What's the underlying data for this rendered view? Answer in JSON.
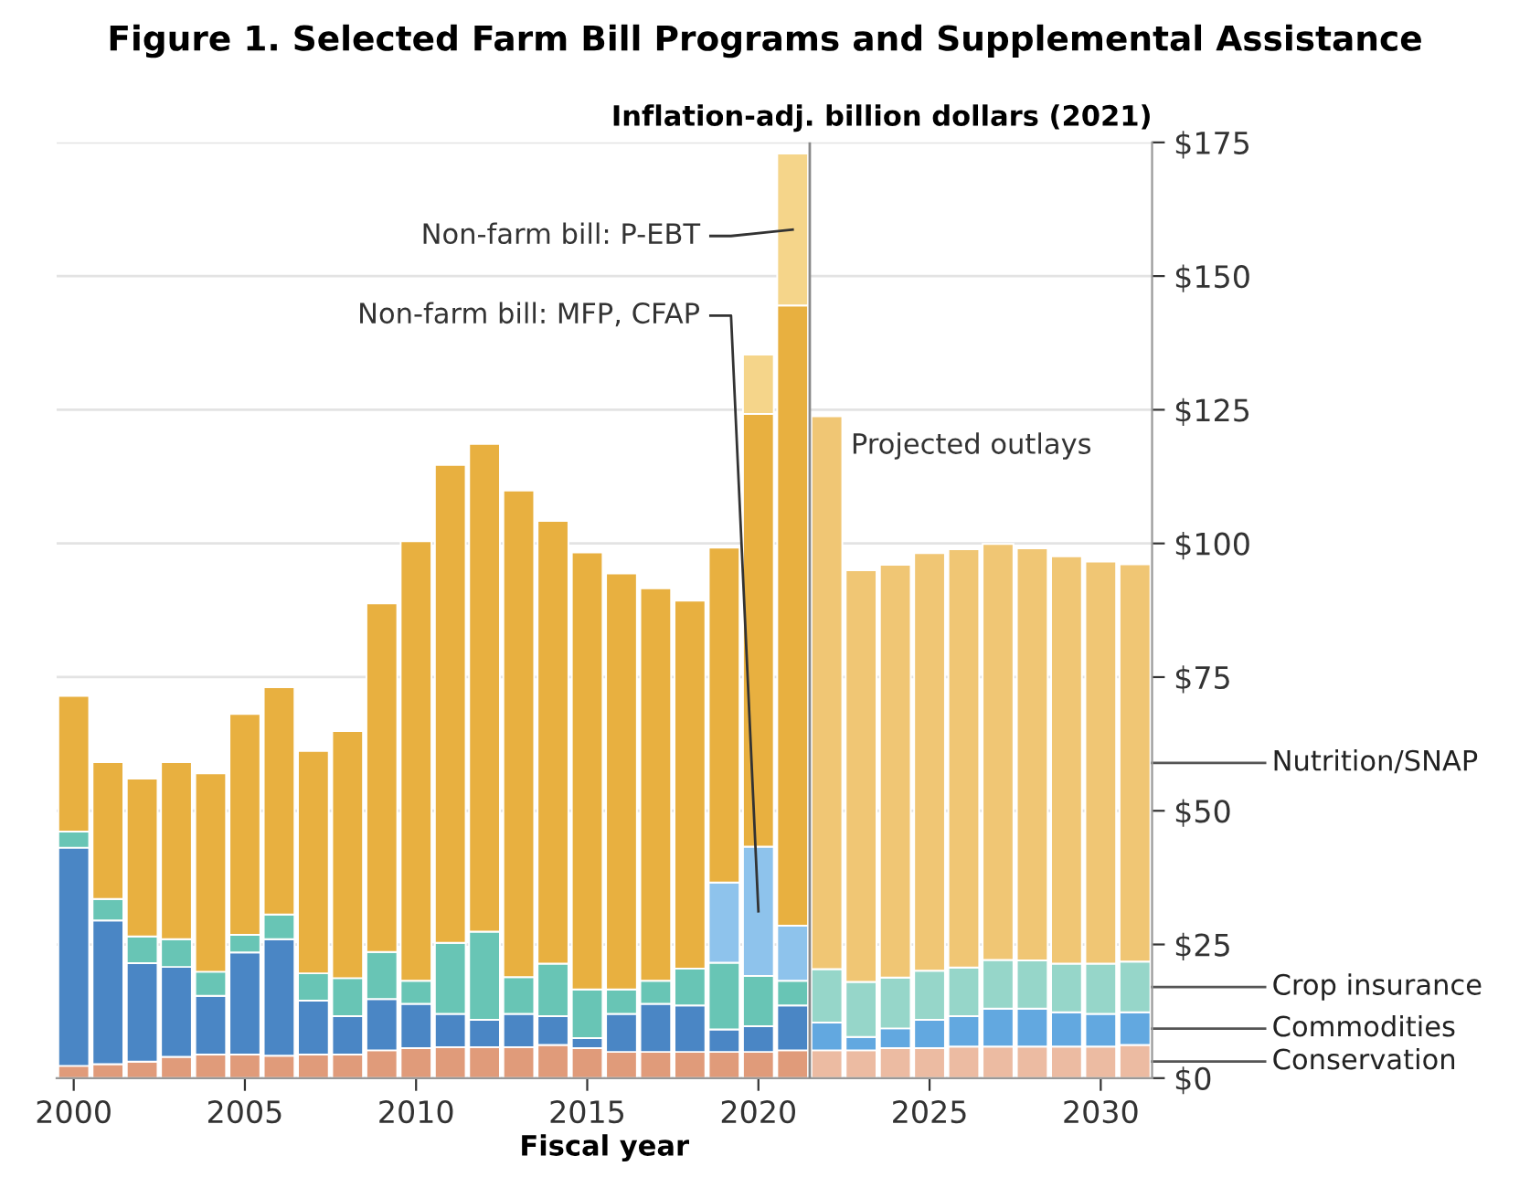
{
  "chart_data": {
    "type": "bar",
    "stacked": true,
    "title": "Figure 1. Selected Farm Bill Programs and Supplemental Assistance",
    "ylabel": "Inflation-adj. billion dollars (2021)",
    "xlabel": "Fiscal year",
    "x": [
      2000,
      2001,
      2002,
      2003,
      2004,
      2005,
      2006,
      2007,
      2008,
      2009,
      2010,
      2011,
      2012,
      2013,
      2014,
      2015,
      2016,
      2017,
      2018,
      2019,
      2020,
      2021,
      2022,
      2023,
      2024,
      2025,
      2026,
      2027,
      2028,
      2029,
      2030,
      2031
    ],
    "xlim": [
      1999.5,
      2031.5
    ],
    "xticks": [
      2000,
      2005,
      2010,
      2015,
      2020,
      2025,
      2030
    ],
    "ylim": [
      0,
      175
    ],
    "yticks": [
      {
        "value": 0,
        "label": "$0"
      },
      {
        "value": 25,
        "label": "$25"
      },
      {
        "value": 50,
        "label": "$50"
      },
      {
        "value": 75,
        "label": "$75"
      },
      {
        "value": 100,
        "label": "$100"
      },
      {
        "value": 125,
        "label": "$125"
      },
      {
        "value": 150,
        "label": "$150"
      },
      {
        "value": 175,
        "label": "$175"
      }
    ],
    "grid": "y",
    "legend": false,
    "series": [
      {
        "name": "Conservation",
        "values": [
          2.3,
          2.6,
          3.1,
          4.0,
          4.4,
          4.4,
          4.2,
          4.4,
          4.4,
          5.2,
          5.6,
          5.8,
          5.8,
          5.8,
          6.2,
          5.6,
          4.9,
          4.9,
          4.9,
          4.9,
          4.9,
          5.2,
          5.2,
          5.2,
          5.6,
          5.6,
          5.9,
          5.9,
          5.9,
          5.9,
          5.9,
          6.2
        ],
        "colors": [
          "#e09b7a",
          "#e09b7a",
          "#e09b7a",
          "#e09b7a",
          "#e09b7a",
          "#e09b7a",
          "#e09b7a",
          "#e09b7a",
          "#e09b7a",
          "#e09b7a",
          "#e09b7a",
          "#e09b7a",
          "#e09b7a",
          "#e09b7a",
          "#e09b7a",
          "#e09b7a",
          "#e09b7a",
          "#e09b7a",
          "#e09b7a",
          "#e09b7a",
          "#e09b7a",
          "#e09b7a",
          "#ecbba2",
          "#ecbba2",
          "#ecbba2",
          "#ecbba2",
          "#ecbba2",
          "#ecbba2",
          "#ecbba2",
          "#ecbba2",
          "#ecbba2",
          "#ecbba2"
        ]
      },
      {
        "name": "Commodities",
        "values": [
          40.8,
          26.9,
          18.4,
          16.8,
          11.0,
          19.1,
          21.8,
          10.1,
          7.2,
          9.6,
          8.3,
          6.2,
          5.1,
          6.2,
          5.4,
          1.9,
          7.1,
          9.0,
          8.7,
          4.2,
          4.8,
          8.4,
          5.2,
          2.5,
          3.7,
          5.3,
          5.7,
          7.1,
          7.1,
          6.4,
          6.1,
          6.1
        ],
        "colors": [
          "#4a86c5",
          "#4a86c5",
          "#4a86c5",
          "#4a86c5",
          "#4a86c5",
          "#4a86c5",
          "#4a86c5",
          "#4a86c5",
          "#4a86c5",
          "#4a86c5",
          "#4a86c5",
          "#4a86c5",
          "#4a86c5",
          "#4a86c5",
          "#4a86c5",
          "#4a86c5",
          "#4a86c5",
          "#4a86c5",
          "#4a86c5",
          "#4a86c5",
          "#4a86c5",
          "#4a86c5",
          "#62a8e0",
          "#62a8e0",
          "#62a8e0",
          "#62a8e0",
          "#62a8e0",
          "#62a8e0",
          "#62a8e0",
          "#62a8e0",
          "#62a8e0",
          "#62a8e0"
        ]
      },
      {
        "name": "Crop insurance",
        "values": [
          3.0,
          4.0,
          5.0,
          5.2,
          4.5,
          3.3,
          4.6,
          5.1,
          7.1,
          8.8,
          4.3,
          13.3,
          16.5,
          6.9,
          9.8,
          9.1,
          4.6,
          4.3,
          6.9,
          12.5,
          9.4,
          4.6,
          10.0,
          10.3,
          9.5,
          9.2,
          9.1,
          9.1,
          9.0,
          9.1,
          9.4,
          9.5
        ],
        "colors": [
          "#68c5b5",
          "#68c5b5",
          "#68c5b5",
          "#68c5b5",
          "#68c5b5",
          "#68c5b5",
          "#68c5b5",
          "#68c5b5",
          "#68c5b5",
          "#68c5b5",
          "#68c5b5",
          "#68c5b5",
          "#68c5b5",
          "#68c5b5",
          "#68c5b5",
          "#68c5b5",
          "#68c5b5",
          "#68c5b5",
          "#68c5b5",
          "#68c5b5",
          "#68c5b5",
          "#68c5b5",
          "#96d6c9",
          "#96d6c9",
          "#96d6c9",
          "#96d6c9",
          "#96d6c9",
          "#96d6c9",
          "#96d6c9",
          "#96d6c9",
          "#96d6c9",
          "#96d6c9"
        ]
      },
      {
        "name": "Non-farm bill: MFP, CFAP",
        "values": [
          null,
          null,
          null,
          null,
          null,
          null,
          null,
          null,
          null,
          null,
          null,
          null,
          null,
          null,
          null,
          null,
          null,
          null,
          null,
          15.0,
          24.2,
          10.3,
          null,
          null,
          null,
          null,
          null,
          null,
          null,
          null,
          null,
          null
        ],
        "color": "#8ec3ec"
      },
      {
        "name": "Nutrition/SNAP",
        "values": [
          25.4,
          25.6,
          29.5,
          33.1,
          37.1,
          41.3,
          42.5,
          41.6,
          46.2,
          65.2,
          82.2,
          89.4,
          91.2,
          91.0,
          82.8,
          81.7,
          77.8,
          73.4,
          68.8,
          62.6,
          80.9,
          116.0,
          103.4,
          77.0,
          77.2,
          78.1,
          78.2,
          77.8,
          77.1,
          76.2,
          75.2,
          74.3
        ],
        "colors": [
          "#e8b040",
          "#e8b040",
          "#e8b040",
          "#e8b040",
          "#e8b040",
          "#e8b040",
          "#e8b040",
          "#e8b040",
          "#e8b040",
          "#e8b040",
          "#e8b040",
          "#e8b040",
          "#e8b040",
          "#e8b040",
          "#e8b040",
          "#e8b040",
          "#e8b040",
          "#e8b040",
          "#e8b040",
          "#e8b040",
          "#e8b040",
          "#e8b040",
          "#f0c674",
          "#f0c674",
          "#f0c674",
          "#f0c674",
          "#f0c674",
          "#f0c674",
          "#f0c674",
          "#f0c674",
          "#f0c674",
          "#f0c674"
        ]
      },
      {
        "name": "Non-farm bill: P-EBT",
        "values": [
          null,
          null,
          null,
          null,
          null,
          null,
          null,
          null,
          null,
          null,
          null,
          null,
          null,
          null,
          null,
          null,
          null,
          null,
          null,
          null,
          11.1,
          28.4,
          null,
          null,
          null,
          null,
          null,
          null,
          null,
          null,
          null,
          null
        ],
        "color": "#f5d58a"
      }
    ],
    "ref_lines": [
      {
        "axis": "x",
        "value": 2021.5,
        "label": "Projected outlays",
        "color": "#888888"
      }
    ]
  }
}
